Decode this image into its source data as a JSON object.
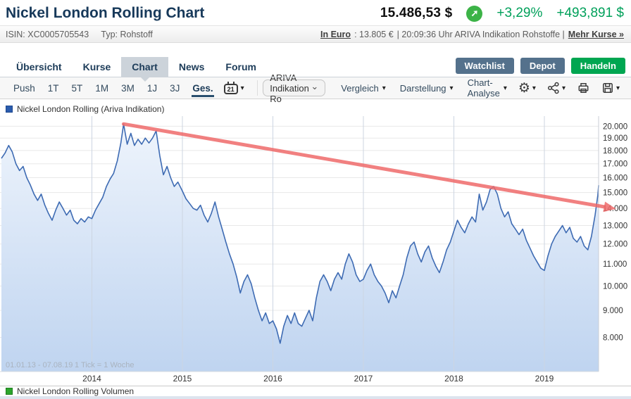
{
  "header": {
    "title": "Nickel London Rolling Chart",
    "price": "15.486,53 $",
    "change_percent": "+3,29%",
    "change_abs": "+493,891 $"
  },
  "icons": {
    "up_arrow": "➚",
    "caret_down": "▾",
    "chevron_down": "⌄",
    "gear": "⚙"
  },
  "infobar": {
    "isin": "ISIN: XC0005705543",
    "typ": "Typ: Rohstoff",
    "in_euro_label": "In Euro",
    "in_euro_value": ": 13.805 €",
    "middle": "| 20:09:36 Uhr ARIVA Indikation Rohstoffe |",
    "more_quotes": "Mehr Kurse »"
  },
  "nav": {
    "items": [
      "Übersicht",
      "Kurse",
      "Chart",
      "News",
      "Forum"
    ],
    "active": "Chart",
    "buttons": [
      "Watchlist",
      "Depot",
      "Handeln"
    ]
  },
  "toolbar": {
    "items": [
      "Push",
      "1T",
      "5T",
      "1M",
      "3M",
      "1J",
      "3J",
      "Ges."
    ],
    "active": "Ges.",
    "calendar_day": "21",
    "instrument": "ARIVA Indikation Ro",
    "menus": [
      "Vergleich",
      "Darstellung",
      "Chart-Analyse"
    ]
  },
  "chart": {
    "legend": "Nickel London Rolling (Ariva Indikation)",
    "watermark_period": "01.01.13 - 07.08.19",
    "watermark_note": "1 Tick = 1 Woche",
    "volume_legend": "Nickel London Rolling Volumen"
  },
  "chart_data": {
    "type": "line",
    "title": "Nickel London Rolling (Ariva Indikation)",
    "unit": "USD",
    "scale": "log",
    "x_range": [
      2013,
      2019.6
    ],
    "y_log_range": [
      6900,
      20900
    ],
    "x_ticks": [
      2014,
      2015,
      2016,
      2017,
      2018,
      2019
    ],
    "y_ticks": [
      8000,
      9000,
      10000,
      11000,
      12000,
      13000,
      14000,
      15000,
      16000,
      17000,
      18000,
      19000,
      20000
    ],
    "y_tick_labels": [
      "8.000",
      "9.000",
      "10.000",
      "11.000",
      "12.000",
      "13.000",
      "14.000",
      "15.000",
      "16.000",
      "17.000",
      "18.000",
      "19.000",
      "20.000"
    ],
    "last_price": 15486.53,
    "trendline": {
      "x1": 2014.35,
      "y1": 20200,
      "x2": 2019.66,
      "y2": 14100,
      "color": "#ef6a6a"
    },
    "colors": {
      "line": "#3e6bb3",
      "fill_top": "#eef4fc",
      "fill_bottom": "#bfd4f0",
      "grid": "#e8e8e8",
      "vgrid": "#ccd5e2"
    },
    "x": [
      2013.0,
      2013.04,
      2013.08,
      2013.12,
      2013.16,
      2013.2,
      2013.24,
      2013.28,
      2013.32,
      2013.36,
      2013.4,
      2013.44,
      2013.48,
      2013.52,
      2013.56,
      2013.6,
      2013.64,
      2013.68,
      2013.72,
      2013.76,
      2013.8,
      2013.84,
      2013.88,
      2013.92,
      2013.96,
      2014.0,
      2014.04,
      2014.08,
      2014.12,
      2014.16,
      2014.2,
      2014.24,
      2014.28,
      2014.32,
      2014.35,
      2014.39,
      2014.43,
      2014.47,
      2014.51,
      2014.55,
      2014.59,
      2014.63,
      2014.67,
      2014.71,
      2014.75,
      2014.79,
      2014.83,
      2014.87,
      2014.91,
      2014.95,
      2015.0,
      2015.04,
      2015.08,
      2015.12,
      2015.16,
      2015.2,
      2015.24,
      2015.28,
      2015.32,
      2015.36,
      2015.4,
      2015.44,
      2015.48,
      2015.52,
      2015.56,
      2015.6,
      2015.64,
      2015.68,
      2015.72,
      2015.76,
      2015.8,
      2015.84,
      2015.88,
      2015.92,
      2015.96,
      2016.0,
      2016.04,
      2016.08,
      2016.12,
      2016.16,
      2016.2,
      2016.24,
      2016.28,
      2016.32,
      2016.36,
      2016.4,
      2016.44,
      2016.48,
      2016.52,
      2016.56,
      2016.6,
      2016.64,
      2016.68,
      2016.72,
      2016.76,
      2016.8,
      2016.84,
      2016.88,
      2016.92,
      2016.96,
      2017.0,
      2017.04,
      2017.08,
      2017.12,
      2017.16,
      2017.2,
      2017.24,
      2017.28,
      2017.32,
      2017.36,
      2017.4,
      2017.44,
      2017.48,
      2017.52,
      2017.56,
      2017.6,
      2017.64,
      2017.68,
      2017.72,
      2017.76,
      2017.8,
      2017.84,
      2017.88,
      2017.92,
      2017.96,
      2018.0,
      2018.04,
      2018.08,
      2018.12,
      2018.16,
      2018.2,
      2018.24,
      2018.28,
      2018.32,
      2018.36,
      2018.4,
      2018.44,
      2018.48,
      2018.52,
      2018.56,
      2018.6,
      2018.64,
      2018.68,
      2018.72,
      2018.76,
      2018.8,
      2018.84,
      2018.88,
      2018.92,
      2018.96,
      2019.0,
      2019.04,
      2019.08,
      2019.12,
      2019.16,
      2019.2,
      2019.24,
      2019.28,
      2019.32,
      2019.36,
      2019.4,
      2019.44,
      2019.48,
      2019.52,
      2019.56,
      2019.59,
      2019.6
    ],
    "y": [
      17400,
      17800,
      18400,
      17900,
      17000,
      16500,
      16800,
      16000,
      15500,
      14900,
      14500,
      14900,
      14200,
      13700,
      13300,
      13900,
      14400,
      14000,
      13600,
      13900,
      13300,
      13100,
      13400,
      13200,
      13500,
      13400,
      13900,
      14300,
      14700,
      15400,
      15900,
      16300,
      17200,
      18600,
      20200,
      18500,
      19400,
      18400,
      18900,
      18500,
      19000,
      18600,
      19000,
      19600,
      17600,
      16200,
      16800,
      16000,
      15400,
      15700,
      15100,
      14600,
      14300,
      14000,
      13900,
      14200,
      13600,
      13200,
      13700,
      14400,
      13500,
      12800,
      12100,
      11500,
      11000,
      10400,
      9700,
      10200,
      10500,
      10100,
      9500,
      9000,
      8600,
      8900,
      8500,
      8600,
      8300,
      7800,
      8400,
      8800,
      8500,
      8900,
      8500,
      8400,
      8700,
      9000,
      8600,
      9500,
      10200,
      10500,
      10200,
      9800,
      10300,
      10600,
      10300,
      11000,
      11500,
      11100,
      10500,
      10200,
      10300,
      10700,
      11000,
      10500,
      10200,
      10000,
      9700,
      9300,
      9800,
      9500,
      10000,
      10500,
      11300,
      11900,
      12100,
      11500,
      11100,
      11600,
      11900,
      11300,
      10900,
      10600,
      11100,
      11700,
      12100,
      12700,
      13300,
      12900,
      12600,
      13100,
      13500,
      13200,
      14900,
      13900,
      14400,
      15200,
      15400,
      14900,
      14000,
      13500,
      13800,
      13100,
      12800,
      12500,
      12800,
      12200,
      11800,
      11400,
      11100,
      10800,
      10700,
      11400,
      12000,
      12400,
      12700,
      13000,
      12600,
      12900,
      12300,
      12100,
      12400,
      11900,
      11700,
      12400,
      13600,
      14800,
      15486
    ]
  }
}
